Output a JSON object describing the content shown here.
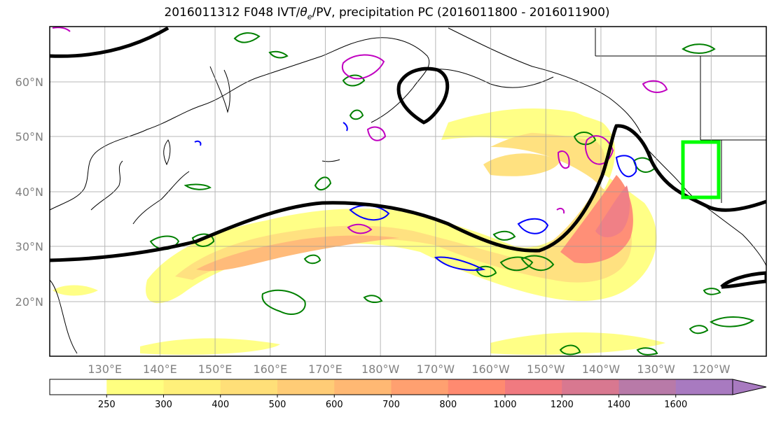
{
  "title": "2016011312 F048 IVT/θe/PV, precipitation PC (2016011800 - 2016011900)",
  "title_parts": {
    "prefix": "2016011312 F048 IVT/",
    "theta": "θ",
    "sub": "e",
    "suffix": "/PV, precipitation PC (2016011800 - 2016011900)"
  },
  "map": {
    "lat_labels": [
      "60°N",
      "50°N",
      "40°N",
      "30°N",
      "20°N"
    ],
    "lon_labels": [
      "130°E",
      "140°E",
      "150°E",
      "160°E",
      "170°E",
      "180°W",
      "170°W",
      "160°W",
      "150°W",
      "140°W",
      "130°W",
      "120°W"
    ],
    "lat_values": [
      60,
      50,
      40,
      30,
      20
    ],
    "lon_values": [
      130,
      140,
      150,
      160,
      170,
      180,
      190,
      200,
      210,
      220,
      230,
      240
    ],
    "extent": {
      "lon": [
        120,
        250
      ],
      "lat": [
        10,
        70
      ]
    },
    "grid": true
  },
  "colorbar": {
    "levels": [
      "250",
      "300",
      "400",
      "500",
      "600",
      "700",
      "800",
      "1000",
      "1200",
      "1400",
      "1600"
    ],
    "colors": [
      "#ffffff",
      "#ffff80",
      "#fff07a",
      "#ffdf78",
      "#ffcc76",
      "#ffb873",
      "#ffa070",
      "#ff8a70",
      "#f07a80",
      "#d87890",
      "#b87aa8",
      "#a87ac0"
    ],
    "extend": "max"
  },
  "overlay_colors": {
    "ivt_contour": "#000000",
    "green_contour": "#008000",
    "blue_contour": "#0000ff",
    "magenta_contour": "#c000c0",
    "target_box": "#00ff00"
  }
}
